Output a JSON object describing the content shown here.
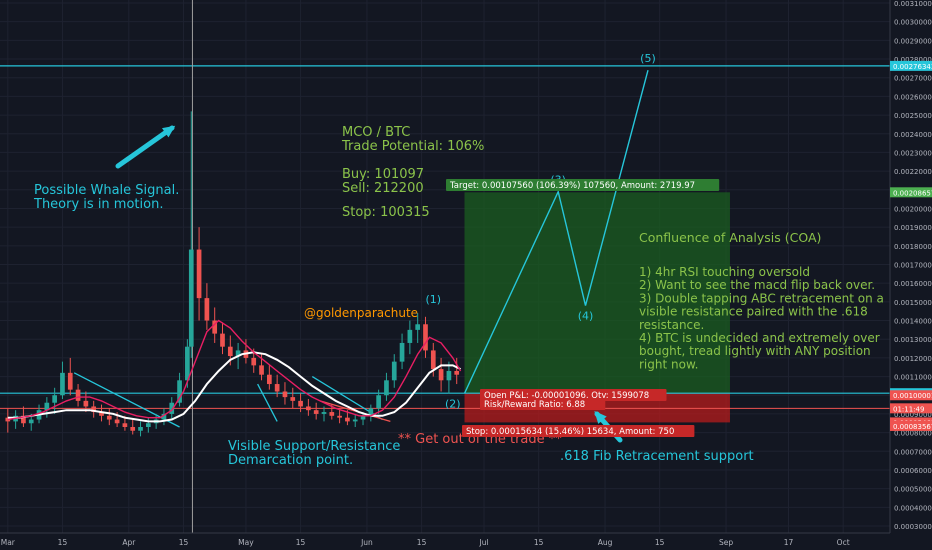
{
  "chart_data": {
    "type": "candlestick",
    "pair_title": "MCO / BTC",
    "trade_potential": "Trade Potential: 106%",
    "buy": "Buy: 101097",
    "sell": "Sell: 212200",
    "stop": "Stop: 100315",
    "y_range": [
      0.00029,
      0.00311
    ],
    "price_ticks": [
      "0.00310000",
      "0.00300000",
      "0.00290000",
      "0.00280000",
      "0.00270000",
      "0.00260000",
      "0.00250000",
      "0.00240000",
      "0.00230000",
      "0.00220000",
      "0.00210000",
      "0.00200000",
      "0.00190000",
      "0.00180000",
      "0.00170000",
      "0.00160000",
      "0.00150000",
      "0.00140000",
      "0.00130000",
      "0.00120000",
      "0.00110000",
      "0.00100000",
      "0.00090000",
      "0.00080000",
      "0.00070000",
      "0.00060000",
      "0.00050000",
      "0.00040000",
      "0.00030000"
    ],
    "price_tick_values": [
      0.0031,
      0.003,
      0.0029,
      0.0028,
      0.0027,
      0.0026,
      0.0025,
      0.0024,
      0.0023,
      0.0022,
      0.0021,
      0.002,
      0.0019,
      0.0018,
      0.0017,
      0.0016,
      0.0015,
      0.0014,
      0.0013,
      0.0012,
      0.0011,
      0.001,
      0.0009,
      0.0008,
      0.0007,
      0.0006,
      0.0005,
      0.0004,
      0.0003
    ],
    "price_badges": [
      {
        "label": "0.00276343",
        "value": 0.00276343,
        "color": "#26c6da"
      },
      {
        "label": "0.00208657",
        "value": 0.00208657,
        "color": "#4caf50"
      },
      {
        "label": "0.00101097",
        "value": 0.00101097,
        "color": "#26c6da"
      },
      {
        "label": "0.00100472",
        "value": 0.00100472,
        "color": "#26c6da"
      },
      {
        "label": "0.00100001",
        "value": 0.00100001,
        "color": "#ef5350"
      },
      {
        "label": "01:11:49",
        "value": 0.00093,
        "color": "#ef5350"
      },
      {
        "label": "0.00085463",
        "value": 0.00085463,
        "color": "#ef5350"
      },
      {
        "label": "0.00083567",
        "value": 0.00083567,
        "color": "#ef5350"
      }
    ],
    "x_ticks": [
      "Mar",
      "15",
      "Apr",
      "15",
      "May",
      "15",
      "Jun",
      "15",
      "Jul",
      "15",
      "Aug",
      "15",
      "Sep",
      "17",
      "Oct"
    ],
    "x_tick_days": [
      0,
      14,
      31,
      45,
      61,
      75,
      92,
      106,
      122,
      136,
      153,
      167,
      184,
      200,
      214
    ],
    "candles_ohlc": [
      [
        0.00088,
        0.00093,
        0.0008,
        0.00086
      ],
      [
        0.00086,
        0.00092,
        0.00082,
        0.00089
      ],
      [
        0.00089,
        0.00094,
        0.00083,
        0.00085
      ],
      [
        0.00085,
        0.0009,
        0.00081,
        0.00087
      ],
      [
        0.00087,
        0.00095,
        0.00085,
        0.00092
      ],
      [
        0.00092,
        0.00099,
        0.00088,
        0.00096
      ],
      [
        0.00096,
        0.00104,
        0.0009,
        0.001
      ],
      [
        0.001,
        0.00118,
        0.00098,
        0.00112
      ],
      [
        0.00112,
        0.0012,
        0.001,
        0.00103
      ],
      [
        0.00103,
        0.00106,
        0.00094,
        0.00097
      ],
      [
        0.00097,
        0.00102,
        0.00091,
        0.00094
      ],
      [
        0.00094,
        0.00097,
        0.00088,
        0.00091
      ],
      [
        0.00091,
        0.00095,
        0.00086,
        0.00089
      ],
      [
        0.00089,
        0.00093,
        0.00084,
        0.00087
      ],
      [
        0.00087,
        0.00091,
        0.00083,
        0.00085
      ],
      [
        0.00085,
        0.00089,
        0.00081,
        0.00083
      ],
      [
        0.00083,
        0.00087,
        0.00079,
        0.00081
      ],
      [
        0.00081,
        0.00086,
        0.00078,
        0.00083
      ],
      [
        0.00083,
        0.00088,
        0.0008,
        0.00085
      ],
      [
        0.00085,
        0.0009,
        0.00082,
        0.00087
      ],
      [
        0.00087,
        0.00093,
        0.00084,
        0.0009
      ],
      [
        0.0009,
        0.00099,
        0.00087,
        0.00096
      ],
      [
        0.00096,
        0.00112,
        0.00094,
        0.00108
      ],
      [
        0.00108,
        0.0013,
        0.00104,
        0.00126
      ],
      [
        0.00126,
        0.00252,
        0.0012,
        0.00178
      ],
      [
        0.00178,
        0.0019,
        0.0014,
        0.00152
      ],
      [
        0.00152,
        0.0016,
        0.00135,
        0.0014
      ],
      [
        0.0014,
        0.00147,
        0.00128,
        0.00133
      ],
      [
        0.00133,
        0.00139,
        0.00122,
        0.00126
      ],
      [
        0.00126,
        0.00132,
        0.00116,
        0.00121
      ],
      [
        0.00121,
        0.00128,
        0.00114,
        0.00124
      ],
      [
        0.00124,
        0.0013,
        0.00117,
        0.0012
      ],
      [
        0.0012,
        0.00125,
        0.00112,
        0.00116
      ],
      [
        0.00116,
        0.00122,
        0.00108,
        0.00111
      ],
      [
        0.00111,
        0.00116,
        0.00103,
        0.00106
      ],
      [
        0.00106,
        0.00111,
        0.00099,
        0.00102
      ],
      [
        0.00102,
        0.00107,
        0.00095,
        0.00099
      ],
      [
        0.00099,
        0.00104,
        0.00093,
        0.00097
      ],
      [
        0.00097,
        0.00101,
        0.00091,
        0.00094
      ],
      [
        0.00094,
        0.00098,
        0.00089,
        0.00092
      ],
      [
        0.00092,
        0.00096,
        0.00087,
        0.0009
      ],
      [
        0.0009,
        0.00094,
        0.00086,
        0.00091
      ],
      [
        0.00091,
        0.00095,
        0.00087,
        0.00089
      ],
      [
        0.00089,
        0.00093,
        0.00085,
        0.00088
      ],
      [
        0.00088,
        0.00092,
        0.00084,
        0.00086
      ],
      [
        0.00086,
        0.0009,
        0.00083,
        0.00087
      ],
      [
        0.00087,
        0.00091,
        0.00084,
        0.00089
      ],
      [
        0.00089,
        0.00095,
        0.00086,
        0.00093
      ],
      [
        0.00093,
        0.00103,
        0.0009,
        0.001
      ],
      [
        0.001,
        0.00112,
        0.00097,
        0.00108
      ],
      [
        0.00108,
        0.00122,
        0.00104,
        0.00118
      ],
      [
        0.00118,
        0.00133,
        0.00114,
        0.00128
      ],
      [
        0.00128,
        0.0014,
        0.00122,
        0.00135
      ],
      [
        0.00135,
        0.00144,
        0.00128,
        0.00138
      ],
      [
        0.00138,
        0.00142,
        0.0012,
        0.00124
      ],
      [
        0.00124,
        0.00128,
        0.0011,
        0.00114
      ],
      [
        0.00114,
        0.0012,
        0.00102,
        0.00108
      ],
      [
        0.00108,
        0.00118,
        0.00101,
        0.00113
      ],
      [
        0.00113,
        0.0012,
        0.00106,
        0.00111
      ]
    ],
    "candle_days": [
      0,
      2,
      4,
      6,
      8,
      10,
      12,
      14,
      16,
      18,
      20,
      22,
      24,
      26,
      28,
      30,
      32,
      34,
      36,
      38,
      40,
      42,
      44,
      46,
      47,
      49,
      51,
      53,
      55,
      57,
      59,
      61,
      63,
      65,
      67,
      69,
      71,
      73,
      75,
      77,
      79,
      81,
      83,
      85,
      87,
      89,
      91,
      93,
      95,
      97,
      99,
      101,
      103,
      105,
      107,
      109,
      111,
      113,
      115
    ],
    "ma_fast": [
      0.00087,
      0.00088,
      0.00089,
      0.00091,
      0.00094,
      0.00097,
      0.00099,
      0.00099,
      0.00097,
      0.00094,
      0.00091,
      0.00089,
      0.00088,
      0.00088,
      0.00092,
      0.00102,
      0.00118,
      0.00134,
      0.0014,
      0.00136,
      0.00129,
      0.00123,
      0.00118,
      0.00113,
      0.00108,
      0.00103,
      0.00099,
      0.00096,
      0.00093,
      0.00091,
      0.00089,
      0.00089,
      0.00092,
      0.00099,
      0.0011,
      0.00122,
      0.00131,
      0.00128,
      0.0012,
      0.00113
    ],
    "ma_slow": [
      0.00088,
      0.00088,
      0.00089,
      0.0009,
      0.00091,
      0.00092,
      0.00092,
      0.00092,
      0.00091,
      0.0009,
      0.00088,
      0.00087,
      0.00086,
      0.00086,
      0.00087,
      0.0009,
      0.00097,
      0.00106,
      0.00113,
      0.00119,
      0.00122,
      0.00123,
      0.00122,
      0.00119,
      0.00115,
      0.0011,
      0.00105,
      0.00101,
      0.00097,
      0.00094,
      0.00091,
      0.00089,
      0.00089,
      0.00091,
      0.00096,
      0.00104,
      0.00112,
      0.00116,
      0.00116,
      0.00114
    ],
    "ma_days": [
      0,
      3,
      6,
      9,
      12,
      15,
      18,
      21,
      24,
      27,
      30,
      33,
      36,
      39,
      42,
      45,
      48,
      51,
      54,
      57,
      60,
      63,
      66,
      69,
      72,
      75,
      78,
      81,
      84,
      87,
      90,
      93,
      96,
      99,
      102,
      105,
      108,
      111,
      114,
      116
    ],
    "ma_fast_color": "#e91e63",
    "ma_slow_color": "#ffffff",
    "levels": {
      "target_line": 0.00276343,
      "support_line": 0.00101097,
      "stop_line": 0.00093
    },
    "position": {
      "entry": 0.00101097,
      "target": 0.00208657,
      "stop": 0.00085463,
      "day_start": 117,
      "day_end": 185,
      "target_label": "Target: 0.00107560 (106.39%) 107560, Amount: 2719.97",
      "pnl_label": "Open P&L: -0.00001096, Qty: 1599078",
      "rr_label": "Risk/Reward Ratio: 6.88",
      "stop_label": "Stop: 0.00015634 (15.46%) 15634, Amount: 750"
    },
    "waves": [
      {
        "label": "(1)",
        "day": 109,
        "price": 0.00144
      },
      {
        "label": "(2)",
        "day": 114,
        "price": 0.00101
      },
      {
        "label": "(3)",
        "day": 141,
        "price": 0.00209
      },
      {
        "label": "(4)",
        "day": 148,
        "price": 0.00148
      },
      {
        "label": "(5)",
        "day": 164,
        "price": 0.00274
      }
    ],
    "annotations": {
      "whale": [
        "Possible Whale Signal.",
        "Theory is in motion."
      ],
      "support": [
        "Visible Support/Resistance",
        "Demarcation point."
      ],
      "get_out": "** Get out of the trade **",
      "fib": ".618 Fib Retracement support",
      "author": "@goldenparachute",
      "coa_title": "Confluence of Analysis (COA)",
      "coa_lines": [
        "1) 4hr RSI touching oversold",
        "2) Want to see the macd flip back over.",
        "3) Double tapping ABC retracement on a",
        "visible resistance paired with the .618",
        "resistance.",
        "4) BTC is undecided and extremely over",
        "bought, tread lightly with ANY position",
        "right now."
      ]
    },
    "colors": {
      "background": "#131722",
      "up": "#26a69a",
      "down": "#ef5350",
      "cyan": "#26c6da",
      "green_text": "#8bc34a",
      "orange": "#ff9800",
      "zone_green": "#1b5e20",
      "zone_red": "#b71c1c"
    }
  }
}
